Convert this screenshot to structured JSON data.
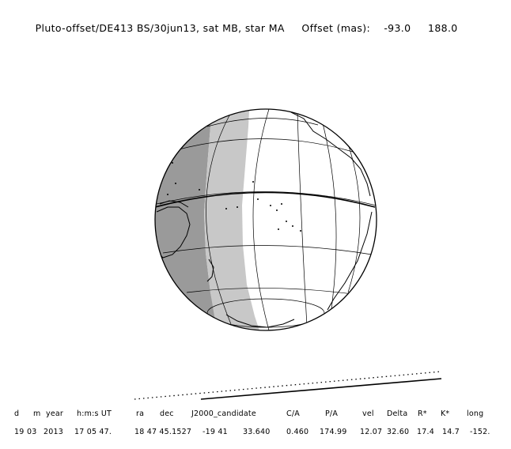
{
  "title": {
    "label": "Pluto-offset/DE413 BS/30jun13, sat MB, star MA",
    "offset_label": "Offset (mas):",
    "offset_ra": "-93.0",
    "offset_dec": "188.0"
  },
  "map": {
    "projection": "orthographic",
    "colors": {
      "night": "#9a9a9a",
      "twilight": "#c8c8c8",
      "day": "#ffffff",
      "outline": "#000000"
    }
  },
  "table": {
    "headers": [
      "d",
      "m",
      "year",
      "h:m:s UT",
      "ra",
      "dec",
      "J2000_candidate",
      "C/A",
      "P/A",
      "vel",
      "Delta",
      "R*",
      "K*",
      "long"
    ],
    "values": [
      "19",
      "03",
      "2013",
      "17 05 47.",
      "18 47 45.1527",
      "-19 41",
      "33.640",
      "0.460",
      "174.99",
      "12.07",
      "32.60",
      "17.4",
      "14.7",
      "-152."
    ]
  }
}
